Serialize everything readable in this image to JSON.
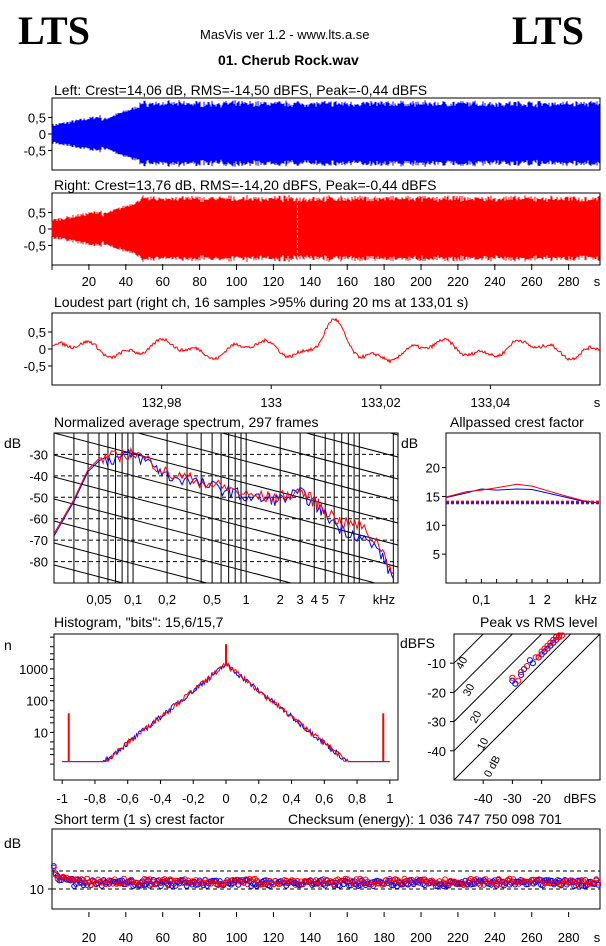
{
  "header": {
    "logo_left": "LTS",
    "logo_right": "LTS",
    "app_version": "MasVis ver 1.2 - www.lts.a.se",
    "filename": "01. Cherub Rock.wav"
  },
  "colors": {
    "left": "#0000ff",
    "right": "#ff0000",
    "axis": "#000000"
  },
  "chart_data": [
    {
      "id": "left_waveform",
      "type": "area",
      "title": "Left: Crest=14,06 dB, RMS=-14,50 dBFS, Peak=-0,44 dBFS",
      "ylim": [
        -1,
        1
      ],
      "yticks": [
        "0,5",
        "0",
        "-0,5"
      ],
      "color": "#0000ff"
    },
    {
      "id": "right_waveform",
      "type": "area",
      "title": "Right: Crest=13,76 dB, RMS=-14,20 dBFS, Peak=-0,44 dBFS",
      "ylim": [
        -1,
        1
      ],
      "yticks": [
        "0,5",
        "0",
        "-0,5"
      ],
      "xlim": [
        0,
        297
      ],
      "xticks": [
        "20",
        "40",
        "60",
        "80",
        "100",
        "120",
        "140",
        "160",
        "180",
        "200",
        "220",
        "240",
        "260",
        "280"
      ],
      "xunit": "s",
      "marker_at_s": 133,
      "color": "#ff0000"
    },
    {
      "id": "loudest_part",
      "type": "line",
      "title": "Loudest part (right ch, 16 samples >95% during 20 ms at 133,01 s)",
      "ylim": [
        -1,
        1
      ],
      "yticks": [
        "0,5",
        "0",
        "-0,5"
      ],
      "xlim": [
        132.96,
        133.06
      ],
      "xticks": [
        "132,98",
        "133",
        "133,02",
        "133,04"
      ],
      "xunit": "s",
      "color": "#ff0000"
    },
    {
      "id": "spectrum",
      "type": "line",
      "title": "Normalized average spectrum, 297 frames",
      "ylabel": "dB",
      "yticks": [
        "-30",
        "-40",
        "-50",
        "-60",
        "-70",
        "-80"
      ],
      "xticks": [
        "0,05",
        "0,1",
        "0,2",
        "0,5",
        "1",
        "2",
        "3",
        "4",
        "5",
        "7"
      ],
      "xunit": "kHz",
      "xlim": [
        0.02,
        22
      ],
      "ylim": [
        -90,
        -20
      ],
      "series": [
        {
          "color": "#0000ff",
          "x": [
            0.02,
            0.03,
            0.04,
            0.05,
            0.07,
            0.1,
            0.15,
            0.2,
            0.3,
            0.5,
            0.7,
            1,
            1.5,
            2,
            3,
            4,
            5,
            7,
            10,
            15,
            20
          ],
          "y": [
            -68,
            -52,
            -38,
            -33,
            -32,
            -30,
            -35,
            -40,
            -42,
            -45,
            -47,
            -50,
            -51,
            -51,
            -48,
            -53,
            -58,
            -65,
            -68,
            -75,
            -88
          ]
        },
        {
          "color": "#ff0000",
          "x": [
            0.02,
            0.03,
            0.04,
            0.05,
            0.07,
            0.1,
            0.15,
            0.2,
            0.3,
            0.5,
            0.7,
            1,
            1.5,
            2,
            3,
            4,
            5,
            7,
            10,
            15,
            20
          ],
          "y": [
            -67,
            -51,
            -37,
            -32,
            -31,
            -29,
            -34,
            -39,
            -41,
            -44,
            -46,
            -49,
            -50,
            -50,
            -47,
            -52,
            -56,
            -62,
            -63,
            -72,
            -85
          ]
        }
      ]
    },
    {
      "id": "allpassed_crest",
      "type": "line",
      "title": "Allpassed crest factor",
      "ylabel": "dB",
      "yticks": [
        "20",
        "15",
        "10",
        "5"
      ],
      "ylim": [
        0,
        26
      ],
      "xticks": [
        "0,1",
        "1",
        "2"
      ],
      "xunit": "kHz",
      "series": [
        {
          "color": "#0000ff",
          "x": [
            0.02,
            0.05,
            0.1,
            0.2,
            0.5,
            1,
            2,
            5,
            10,
            20
          ],
          "y": [
            14.8,
            15.6,
            16.3,
            16.1,
            16.3,
            16.2,
            15.6,
            14.8,
            14.2,
            13.9
          ]
        },
        {
          "color": "#ff0000",
          "x": [
            0.02,
            0.05,
            0.1,
            0.2,
            0.5,
            1,
            2,
            5,
            10,
            20
          ],
          "y": [
            14.9,
            15.8,
            16.1,
            16.5,
            17.1,
            16.8,
            16.0,
            15.0,
            14.3,
            13.9
          ]
        }
      ],
      "reference_lines": [
        13.9,
        14.2
      ]
    },
    {
      "id": "histogram",
      "type": "line",
      "title": "Histogram, \"bits\": 15,6/15,7",
      "ylabel": "n",
      "yticks": [
        "1000",
        "100",
        "10"
      ],
      "xticks": [
        "-1",
        "-0,8",
        "-0,6",
        "-0,4",
        "-0,2",
        "0",
        "0,2",
        "0,4",
        "0,6",
        "0,8",
        "1"
      ],
      "xlim": [
        -1.05,
        1.05
      ]
    },
    {
      "id": "peak_vs_rms",
      "type": "scatter",
      "title": "Peak vs RMS level",
      "ylabel": "dBFS",
      "yticks": [
        "-10",
        "-20",
        "-30",
        "-40"
      ],
      "xticks": [
        "-40",
        "-30",
        "-20"
      ],
      "xunit": "dBFS",
      "diagonal_labels": [
        "40",
        "30",
        "20",
        "10",
        "0 dB"
      ],
      "series": [
        {
          "color": "#0000ff",
          "x": [
            -29,
            -30,
            -27,
            -26,
            -24,
            -23,
            -21,
            -20,
            -19,
            -18,
            -17,
            -16,
            -16,
            -15,
            -15,
            -14,
            -14
          ],
          "y": [
            -17,
            -16,
            -14,
            -12,
            -9,
            -10,
            -8,
            -7,
            -6,
            -5,
            -4,
            -3,
            -2,
            -2,
            -1,
            -1,
            -0.5
          ]
        },
        {
          "color": "#ff0000",
          "x": [
            -28,
            -30,
            -27,
            -25,
            -22,
            -21,
            -20,
            -19,
            -18,
            -17,
            -16,
            -15,
            -15,
            -14,
            -14,
            -13
          ],
          "y": [
            -16,
            -15,
            -13,
            -11,
            -8,
            -8,
            -6,
            -5,
            -4,
            -3,
            -2,
            -2,
            -1,
            -1,
            -0.5,
            -0.5
          ]
        }
      ]
    },
    {
      "id": "short_term_crest",
      "type": "scatter",
      "title": "Short term (1 s) crest factor",
      "checksum": "Checksum (energy):  1 036 747 750 098 701",
      "ylabel": "dB",
      "yticks": [
        "10"
      ],
      "ylim": [
        5,
        25
      ],
      "xlim": [
        0,
        297
      ],
      "xticks": [
        "20",
        "40",
        "60",
        "80",
        "100",
        "120",
        "140",
        "160",
        "180",
        "200",
        "220",
        "240",
        "260",
        "280"
      ],
      "xunit": "s",
      "reference_lines": [
        10,
        14.5
      ]
    }
  ]
}
